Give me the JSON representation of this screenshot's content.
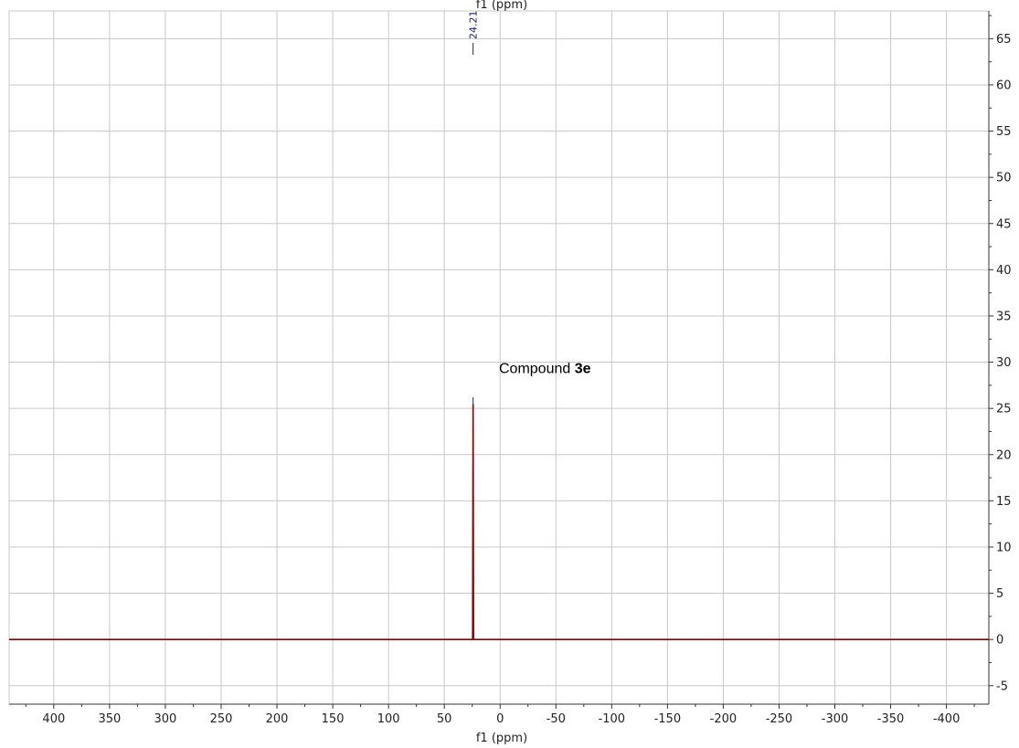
{
  "chart_data": {
    "type": "line",
    "xlabel": "f1 (ppm)",
    "top_xlabel": "f1 (ppm)",
    "xlim": [
      440,
      -438
    ],
    "ylim": [
      -7,
      68
    ],
    "x_ticks": [
      400,
      350,
      300,
      250,
      200,
      150,
      100,
      50,
      0,
      -50,
      -100,
      -150,
      -200,
      -250,
      -300,
      -350,
      -400
    ],
    "y_ticks": [
      -5,
      0,
      5,
      10,
      15,
      20,
      25,
      30,
      35,
      40,
      45,
      50,
      55,
      60,
      65
    ],
    "x_minor_step": 25,
    "y_minor_step": 2.5,
    "grid": true,
    "y_axis_side": "right",
    "baseline": 0,
    "series": [
      {
        "x": [
          440,
          24.6,
          24.21,
          23.8,
          -438
        ],
        "y": [
          0,
          0,
          25.4,
          0,
          0
        ]
      }
    ],
    "peak_label": {
      "x": 24.21,
      "text": "24.21"
    },
    "peak_marker_top": 26.2,
    "annotation": {
      "x": 1,
      "y": 28.8,
      "text": "Compound ",
      "bold": "3e"
    },
    "colors": {
      "spectrum": "#8b0000",
      "peak_label": "#1a237e",
      "grid": "#c8c8c8",
      "axis": "#333333"
    }
  }
}
